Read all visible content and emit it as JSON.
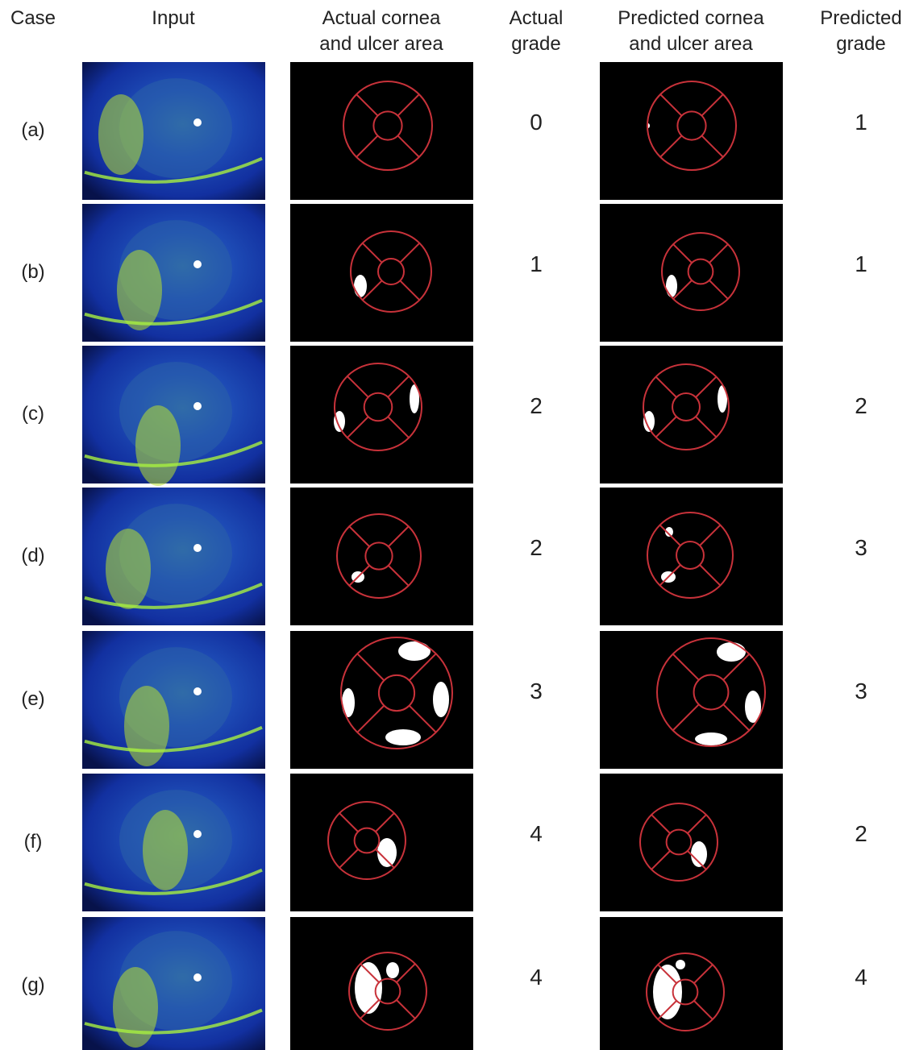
{
  "header": {
    "columns": [
      "Case",
      "Input",
      [
        "Actual cornea",
        "and ulcer area"
      ],
      [
        "Actual",
        "grade"
      ],
      [
        "Predicted cornea",
        "and ulcer area"
      ],
      [
        "Predicted",
        "grade"
      ]
    ]
  },
  "rows": [
    {
      "case": "(a)",
      "actual_grade": 0,
      "predicted_grade": 1
    },
    {
      "case": "(b)",
      "actual_grade": 1,
      "predicted_grade": 1
    },
    {
      "case": "(c)",
      "actual_grade": 2,
      "predicted_grade": 2
    },
    {
      "case": "(d)",
      "actual_grade": 2,
      "predicted_grade": 3
    },
    {
      "case": "(e)",
      "actual_grade": 3,
      "predicted_grade": 3
    },
    {
      "case": "(f)",
      "actual_grade": 4,
      "predicted_grade": 2
    },
    {
      "case": "(g)",
      "actual_grade": 4,
      "predicted_grade": 4
    }
  ]
}
